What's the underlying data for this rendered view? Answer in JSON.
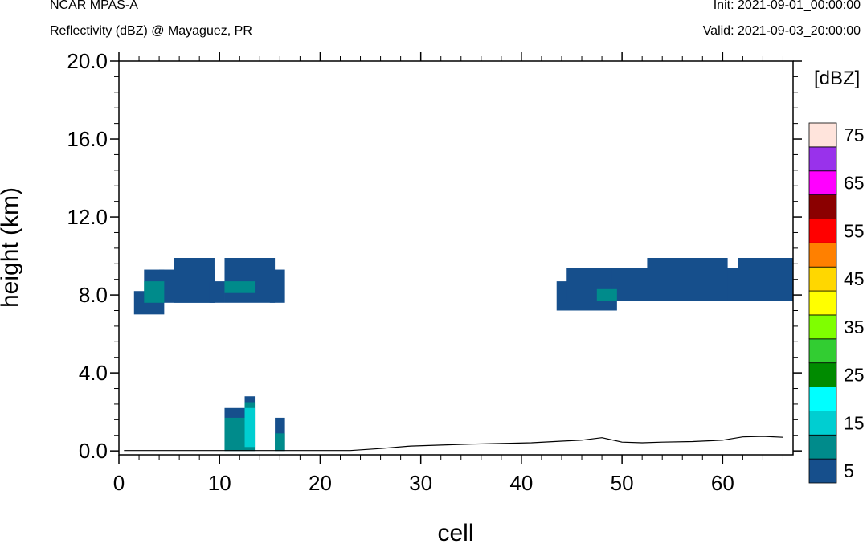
{
  "header": {
    "model": "NCAR MPAS-A",
    "field": "Reflectivity (dBZ) @ Mayaguez, PR",
    "init": "Init: 2021-09-01_00:00:00",
    "valid": "Valid: 2021-09-03_20:00:00"
  },
  "chart_data": {
    "type": "heatmap",
    "title": "Reflectivity (dBZ) @ Mayaguez, PR",
    "xlabel": "cell",
    "ylabel": "height (km)",
    "xlim": [
      0,
      67
    ],
    "ylim": [
      -0.2,
      20.0
    ],
    "x_ticks": [
      "0",
      "10",
      "20",
      "30",
      "40",
      "50",
      "60"
    ],
    "y_ticks": [
      "0.0",
      "4.0",
      "8.0",
      "12.0",
      "16.0",
      "20.0"
    ],
    "colorbar": {
      "units_label": "[dBZ]",
      "tick_labels": [
        "5",
        "15",
        "25",
        "35",
        "45",
        "55",
        "65",
        "75"
      ],
      "levels": [
        5,
        10,
        15,
        20,
        25,
        30,
        35,
        40,
        45,
        50,
        55,
        60,
        65,
        70,
        75
      ],
      "colors": [
        "#164f8c",
        "#008b8b",
        "#00ced1",
        "#00ffff",
        "#008b00",
        "#32cd32",
        "#7fff00",
        "#ffff00",
        "#ffd700",
        "#ff8000",
        "#ff0000",
        "#8b0000",
        "#ff00ff",
        "#9932eb",
        "#ffe4dc"
      ]
    },
    "cells": [
      {
        "x0": 1.5,
        "x1": 4.5,
        "y0": 7.0,
        "y1": 8.2,
        "dbz": 5
      },
      {
        "x0": 2.5,
        "x1": 4.5,
        "y0": 7.6,
        "y1": 9.3,
        "dbz": 5
      },
      {
        "x0": 4.0,
        "x1": 9.5,
        "y0": 7.6,
        "y1": 9.3,
        "dbz": 5
      },
      {
        "x0": 5.5,
        "x1": 9.5,
        "y0": 7.6,
        "y1": 9.9,
        "dbz": 5
      },
      {
        "x0": 9.0,
        "x1": 10.5,
        "y0": 7.6,
        "y1": 8.7,
        "dbz": 5
      },
      {
        "x0": 10.5,
        "x1": 15.5,
        "y0": 7.6,
        "y1": 9.9,
        "dbz": 5
      },
      {
        "x0": 15.0,
        "x1": 16.5,
        "y0": 7.6,
        "y1": 9.3,
        "dbz": 5
      },
      {
        "x0": 2.5,
        "x1": 4.5,
        "y0": 7.6,
        "y1": 8.7,
        "dbz": 10
      },
      {
        "x0": 10.5,
        "x1": 13.5,
        "y0": 8.1,
        "y1": 8.7,
        "dbz": 10
      },
      {
        "x0": 43.5,
        "x1": 49.5,
        "y0": 7.2,
        "y1": 8.7,
        "dbz": 5
      },
      {
        "x0": 44.5,
        "x1": 52.5,
        "y0": 7.7,
        "y1": 9.4,
        "dbz": 5
      },
      {
        "x0": 49.0,
        "x1": 67.0,
        "y0": 7.7,
        "y1": 9.4,
        "dbz": 5
      },
      {
        "x0": 52.5,
        "x1": 60.5,
        "y0": 7.7,
        "y1": 9.9,
        "dbz": 5
      },
      {
        "x0": 61.5,
        "x1": 67.0,
        "y0": 7.7,
        "y1": 9.9,
        "dbz": 5
      },
      {
        "x0": 47.5,
        "x1": 49.5,
        "y0": 7.7,
        "y1": 8.3,
        "dbz": 10
      },
      {
        "x0": 10.5,
        "x1": 12.5,
        "y0": 0.0,
        "y1": 2.2,
        "dbz": 5
      },
      {
        "x0": 10.5,
        "x1": 12.5,
        "y0": 0.0,
        "y1": 1.7,
        "dbz": 10
      },
      {
        "x0": 12.5,
        "x1": 13.5,
        "y0": 0.0,
        "y1": 2.8,
        "dbz": 5
      },
      {
        "x0": 12.5,
        "x1": 13.5,
        "y0": 0.0,
        "y1": 2.5,
        "dbz": 10
      },
      {
        "x0": 12.5,
        "x1": 13.5,
        "y0": 0.2,
        "y1": 2.2,
        "dbz": 15
      },
      {
        "x0": 15.5,
        "x1": 16.5,
        "y0": 0.0,
        "y1": 1.7,
        "dbz": 5
      },
      {
        "x0": 15.5,
        "x1": 16.5,
        "y0": 0.0,
        "y1": 0.9,
        "dbz": 10
      }
    ],
    "terrain": {
      "x": [
        0.5,
        23,
        26,
        29,
        32,
        35,
        38,
        41,
        44,
        46,
        48,
        50,
        52,
        54,
        57,
        60,
        62,
        64,
        66
      ],
      "y": [
        0.02,
        0.02,
        0.12,
        0.25,
        0.3,
        0.35,
        0.38,
        0.42,
        0.5,
        0.55,
        0.68,
        0.45,
        0.42,
        0.45,
        0.48,
        0.55,
        0.72,
        0.75,
        0.7
      ]
    }
  }
}
